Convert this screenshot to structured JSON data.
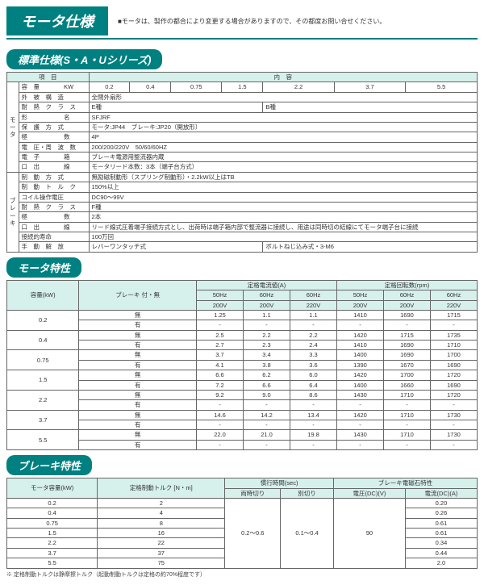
{
  "header": {
    "title": "モータ仕様",
    "note": "■モータは、製作の都合により変更する場合がありますので、その都度お問い合せください。"
  },
  "sec1": {
    "title": "標準仕様(S・A・Uシリーズ)",
    "col_item": "項　目",
    "col_content": "内　容",
    "motor_label": "モータ",
    "brake_label": "ブレーキ",
    "r1_label": "容　量　　　　KW",
    "r1_vals": [
      "0.2",
      "0.4",
      "0.75",
      "1.5",
      "2.2",
      "3.7",
      "5.5"
    ],
    "r2_label": "外　被　構　造",
    "r2_val": "全閉外扇形",
    "r3_label": "耐　熱　ク　ラ　ス",
    "r3_v1": "E種",
    "r3_v2": "B種",
    "r4_label": "形　　　　　　名",
    "r4_val": "SFJRF",
    "r5_label": "保　護　方　式",
    "r5_val": "モータ:JP44　ブレーキ:JP20（開放形）",
    "r6_label": "極　　　　　　数",
    "r6_val": "4P",
    "r7_label": "電　圧・周　波　数",
    "r7_val": "200/200/220V　50/60/60HZ",
    "r8_label": "電　子　　　　箱",
    "r8_val": "ブレーキ電源用整流器内蔵",
    "r9_label": "口　出　　　　線",
    "r9_val": "モータリード本数：3本（端子台方式）",
    "r10_label": "制　動　方　式",
    "r10_val": "無励磁制動形（スプリング制動形）・2.2kW以上はTB",
    "r11_label": "制　動　ト　ル　ク",
    "r11_val": "150%以上",
    "r12_label": "コイル操作電圧",
    "r12_val": "DC90～99V",
    "r13_label": "耐　熱　ク　ラ　ス",
    "r13_val": "F種",
    "r14_label": "極　　　　　　数",
    "r14_val": "2本",
    "r15_label": "口　出　　　　線",
    "r15_val": "リード線式圧着端子接続方式とし、出荷時は端子箱内部で整流器に接続し、用途は同時切の結線にてモータ端子台に接続",
    "r16_label": "接続的寿命",
    "r16_val": "100万回",
    "r17_label": "手　動　解　放",
    "r17_v1": "レバーワンタッチ式",
    "r17_v2": "ボルトねじ込み式・3-M6"
  },
  "sec2": {
    "title": "モータ特性",
    "h_capacity": "容量(kW)",
    "h_brake": "ブレーキ\n付・無",
    "h_current": "定格電流値(A)",
    "h_rpm": "定格回転数(rpm)",
    "h_50hz": "50Hz",
    "h_60hz": "60Hz",
    "h_200v": "200V",
    "h_220v": "220V",
    "lab_mu": "無",
    "lab_ari": "有",
    "rows": [
      {
        "cap": "0.2",
        "a": [
          "1.25",
          "1.1",
          "1.1",
          "1410",
          "1690",
          "1715"
        ],
        "b": [
          "-",
          "-",
          "-",
          "-",
          "-",
          "-"
        ]
      },
      {
        "cap": "0.4",
        "a": [
          "2.5",
          "2.2",
          "2.2",
          "1420",
          "1715",
          "1735"
        ],
        "b": [
          "2.7",
          "2.3",
          "2.4",
          "1410",
          "1690",
          "1710"
        ]
      },
      {
        "cap": "0.75",
        "a": [
          "3.7",
          "3.4",
          "3.3",
          "1400",
          "1690",
          "1700"
        ],
        "b": [
          "4.1",
          "3.8",
          "3.6",
          "1390",
          "1670",
          "1690"
        ]
      },
      {
        "cap": "1.5",
        "a": [
          "6.6",
          "6.2",
          "6.0",
          "1420",
          "1700",
          "1720"
        ],
        "b": [
          "7.2",
          "6.6",
          "6.4",
          "1400",
          "1660",
          "1690"
        ]
      },
      {
        "cap": "2.2",
        "a": [
          "9.2",
          "9.0",
          "8.6",
          "1430",
          "1710",
          "1720"
        ],
        "b": [
          "-",
          "-",
          "-",
          "-",
          "-",
          "-"
        ]
      },
      {
        "cap": "3.7",
        "a": [
          "14.6",
          "14.2",
          "13.4",
          "1420",
          "1710",
          "1730"
        ],
        "b": [
          "-",
          "-",
          "-",
          "-",
          "-",
          "-"
        ]
      },
      {
        "cap": "5.5",
        "a": [
          "22.0",
          "21.0",
          "19.8",
          "1430",
          "1710",
          "1730"
        ],
        "b": [
          "-",
          "-",
          "-",
          "-",
          "-",
          "-"
        ]
      }
    ]
  },
  "sec3": {
    "title": "ブレーキ特性",
    "h_cap": "モータ容量(kW)",
    "h_torque": "定格制動トルク\n[N・m]",
    "h_time": "慣行時間(sec)",
    "h_t1": "両時切り",
    "h_t2": "別切り",
    "h_mag": "ブレーキ電磁石特性",
    "h_volt": "電圧(DC)(V)",
    "h_amp": "電流(DC)(A)",
    "time1": "0.2～0.6",
    "time2": "0.1～0.4",
    "volt": "90",
    "rows": [
      {
        "c": "0.2",
        "t": "2",
        "a": "0.20"
      },
      {
        "c": "0.4",
        "t": "4",
        "a": "0.26"
      },
      {
        "c": "0.75",
        "t": "8",
        "a": "0.61"
      },
      {
        "c": "1.5",
        "t": "16",
        "a": "0.61"
      },
      {
        "c": "2.2",
        "t": "22",
        "a": "0.34"
      },
      {
        "c": "3.7",
        "t": "37",
        "a": "0.44"
      },
      {
        "c": "5.5",
        "t": "75",
        "a": "2.0"
      }
    ],
    "note": "※ 定格制動トルクは静摩擦トルク（起動制動トルクは定格の約70%程度です）"
  },
  "colors": {
    "teal": "#008080",
    "hdr_bg": "#d6f0ec"
  }
}
